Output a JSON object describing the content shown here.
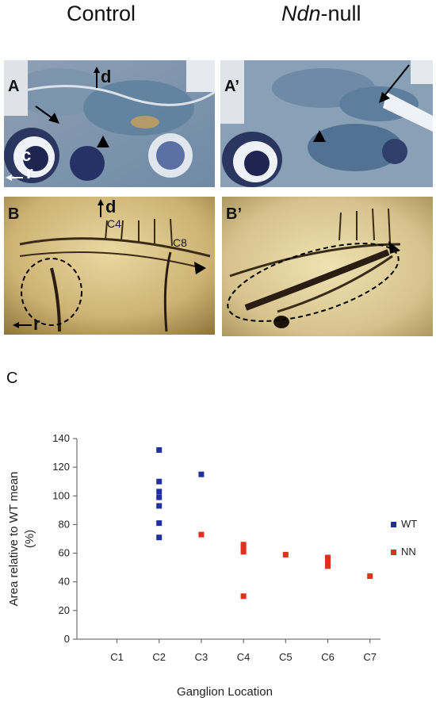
{
  "columns": {
    "control_title": "Control",
    "ndn_title_italic": "Ndn",
    "ndn_title_rest": "-null"
  },
  "panels": {
    "A": "A",
    "A_prime": "A’",
    "B": "B",
    "B_prime": "B’",
    "C": "C"
  },
  "annotations": {
    "d_top_A": "d",
    "c_A": "c",
    "r_A": "r",
    "d_top_B": "d",
    "C4": "C4",
    "C8": "C8",
    "r_B": "r"
  },
  "colors": {
    "WT": "#1f2f9e",
    "NN": "#e0301e"
  },
  "chart_data": {
    "type": "scatter",
    "title": "",
    "xlabel": "Ganglion Location",
    "ylabel": "Area relative to WT mean (%)",
    "ylabel_lines": [
      "Area relative to WT mean",
      "(%)"
    ],
    "categories": [
      "C1",
      "C2",
      "C3",
      "C4",
      "C5",
      "C6",
      "C7"
    ],
    "ylim": [
      0,
      140
    ],
    "yticks": [
      0,
      20,
      40,
      60,
      80,
      100,
      120,
      140
    ],
    "legend_position": "right",
    "series": [
      {
        "name": "WT",
        "color": "#1f2f9e",
        "points": [
          [
            "C2",
            132
          ],
          [
            "C2",
            110
          ],
          [
            "C2",
            103
          ],
          [
            "C2",
            99
          ],
          [
            "C2",
            93
          ],
          [
            "C2",
            81
          ],
          [
            "C2",
            71
          ],
          [
            "C3",
            115
          ]
        ]
      },
      {
        "name": "NN",
        "color": "#e0301e",
        "points": [
          [
            "C3",
            73
          ],
          [
            "C4",
            66
          ],
          [
            "C4",
            64
          ],
          [
            "C4",
            61
          ],
          [
            "C4",
            30
          ],
          [
            "C5",
            59
          ],
          [
            "C6",
            57
          ],
          [
            "C6",
            54
          ],
          [
            "C6",
            51
          ],
          [
            "C7",
            44
          ]
        ]
      }
    ]
  }
}
